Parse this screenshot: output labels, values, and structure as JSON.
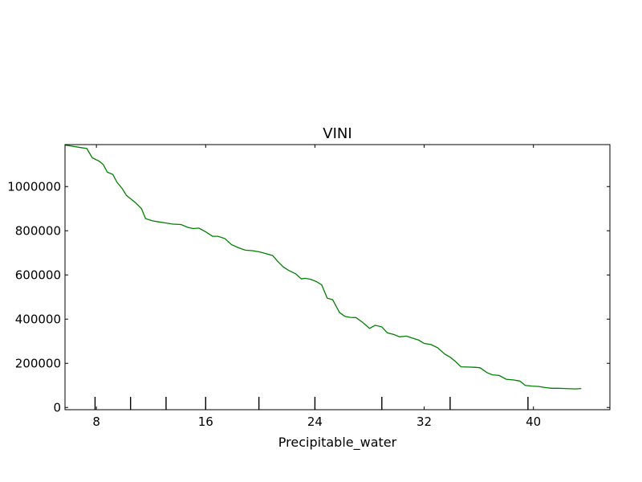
{
  "chart_data": {
    "type": "line",
    "title": "VINI",
    "xlabel": "Precipitable_water",
    "ylabel": "",
    "xlim": [
      5.7,
      45.6
    ],
    "ylim": [
      -10000,
      1190000
    ],
    "grid": false,
    "x_ticks": [
      8,
      16,
      24,
      32,
      40
    ],
    "y_ticks": [
      0,
      200000,
      400000,
      600000,
      800000,
      1000000
    ],
    "x_ticks_display": [
      "8",
      "16",
      "24",
      "32",
      "40"
    ],
    "y_ticks_display": [
      "0",
      "200000",
      "400000",
      "600000",
      "800000",
      "1000000"
    ],
    "rug_x": [
      7.9,
      10.5,
      13.1,
      16.0,
      19.9,
      24.0,
      28.9,
      33.9,
      39.6
    ],
    "series": [
      {
        "color": "#008000",
        "x": [
          5.7,
          6.2,
          6.7,
          7.3,
          7.7,
          8.2,
          8.5,
          8.8,
          9.2,
          9.5,
          9.9,
          10.2,
          10.6,
          10.9,
          11.3,
          11.6,
          12.1,
          12.6,
          13.1,
          13.6,
          14.2,
          14.7,
          15.1,
          15.5,
          16.0,
          16.5,
          16.9,
          17.4,
          17.9,
          18.4,
          18.9,
          19.4,
          19.9,
          20.4,
          20.9,
          21.3,
          21.7,
          22.1,
          22.6,
          23.0,
          23.3,
          23.7,
          24.1,
          24.5,
          24.9,
          25.3,
          25.8,
          26.2,
          26.6,
          27.0,
          27.5,
          28.0,
          28.4,
          28.9,
          29.3,
          29.8,
          30.2,
          30.7,
          31.1,
          31.6,
          32.0,
          32.5,
          33.0,
          33.5,
          33.9,
          34.3,
          34.7,
          35.2,
          35.7,
          36.1,
          36.6,
          37.0,
          37.5,
          38.0,
          38.5,
          39.0,
          39.4,
          39.9,
          40.4,
          40.9,
          41.3,
          41.8,
          42.3,
          42.7,
          43.1,
          43.5
        ],
        "y": [
          1188000,
          1183000,
          1178000,
          1172000,
          1130000,
          1115000,
          1100000,
          1065000,
          1055000,
          1020000,
          990000,
          960000,
          940000,
          925000,
          900000,
          855000,
          845000,
          840000,
          835000,
          830000,
          828000,
          815000,
          810000,
          812000,
          795000,
          775000,
          775000,
          765000,
          737000,
          723000,
          712000,
          710000,
          705000,
          697000,
          688000,
          660000,
          635000,
          620000,
          605000,
          582000,
          585000,
          580000,
          570000,
          555000,
          495000,
          488000,
          430000,
          412000,
          408000,
          407000,
          385000,
          358000,
          372000,
          365000,
          338000,
          330000,
          320000,
          323000,
          315000,
          305000,
          290000,
          285000,
          270000,
          242000,
          228000,
          208000,
          184000,
          183000,
          182000,
          180000,
          158000,
          148000,
          145000,
          128000,
          125000,
          120000,
          100000,
          97000,
          95000,
          90000,
          87000,
          87000,
          86000,
          85000,
          84000,
          86000
        ]
      }
    ]
  }
}
